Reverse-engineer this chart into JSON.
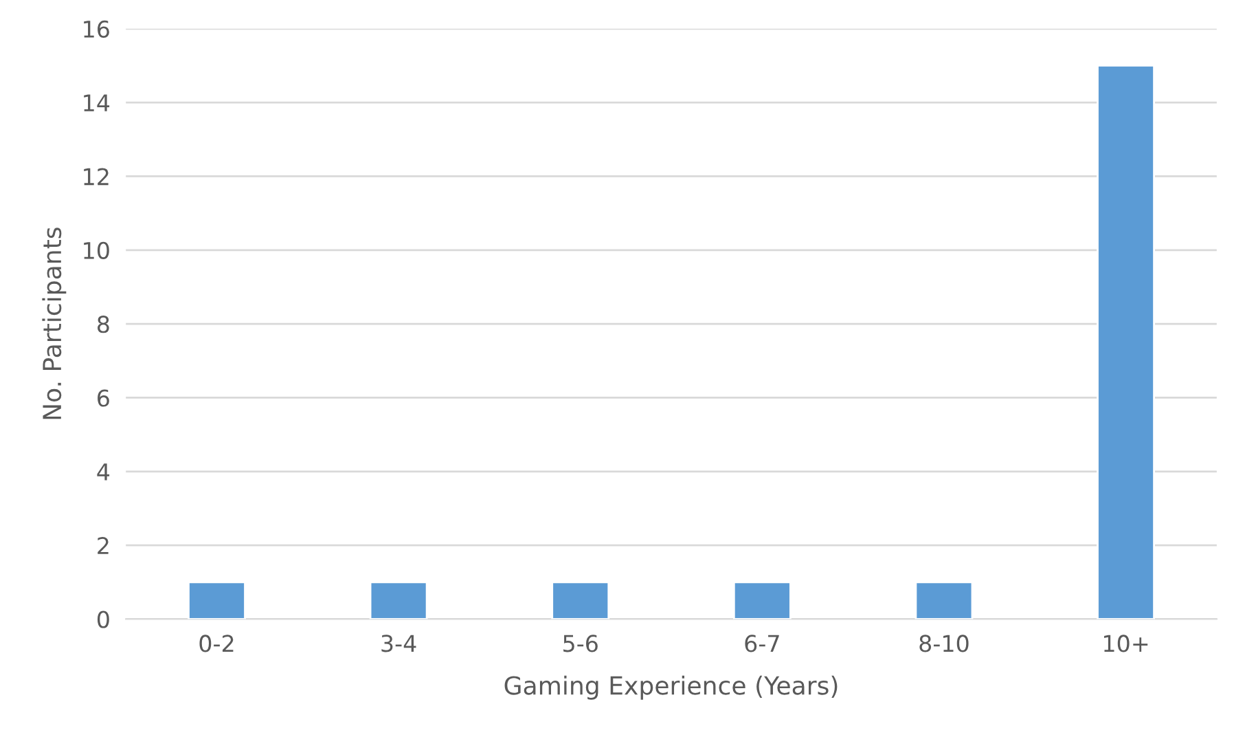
{
  "chart_data": {
    "type": "bar",
    "xlabel": "Gaming Experience (Years)",
    "ylabel": "No. Participants",
    "categories": [
      "0-2",
      "3-4",
      "5-6",
      "6-7",
      "8-10",
      "10+"
    ],
    "values": [
      1,
      1,
      1,
      1,
      1,
      15
    ],
    "color": "#5b9bd5",
    "ylim": [
      0,
      16
    ],
    "yticks": [
      0,
      2,
      4,
      6,
      8,
      10,
      12,
      14,
      16
    ],
    "grid": "y",
    "legend": false
  }
}
